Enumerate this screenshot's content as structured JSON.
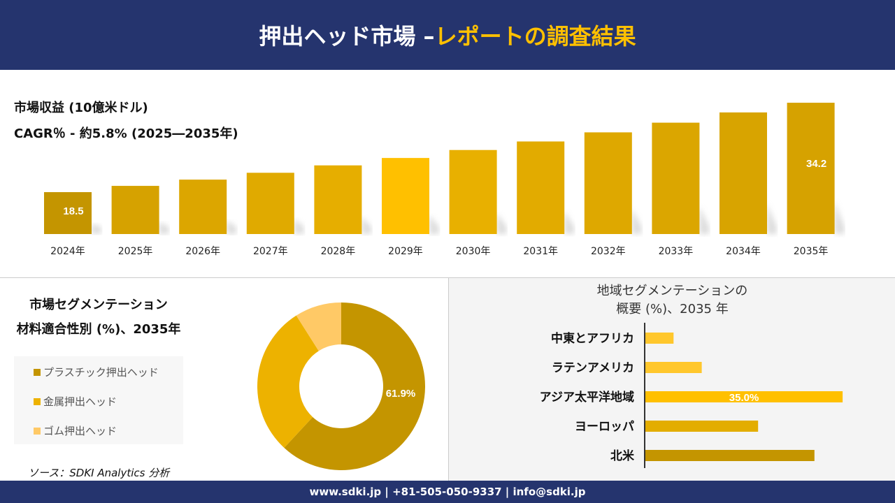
{
  "header": {
    "title_main": "押出ヘッド市場 –",
    "title_accent": "レポートの調査結果"
  },
  "colors": {
    "navy": "#25346e",
    "accent": "#ffc000",
    "plastic": "#c49500",
    "metal": "#edb200",
    "rubber": "#ffc966"
  },
  "chart_data": [
    {
      "type": "bar",
      "title": "市場収益 (10億米ドル)",
      "subtitle": "CAGR％ - 約5.8% (2025―2035年)",
      "categories": [
        "2024年",
        "2025年",
        "2026年",
        "2027年",
        "2028年",
        "2029年",
        "2030年",
        "2031年",
        "2032年",
        "2033年",
        "2034年",
        "2035年"
      ],
      "values": [
        18.5,
        19.6,
        20.7,
        21.9,
        23.2,
        24.5,
        25.9,
        27.4,
        29.0,
        30.7,
        32.5,
        34.2
      ],
      "data_labels": {
        "0": "18.5",
        "11": "34.2"
      }
    },
    {
      "type": "pie",
      "title": "市場セグメンテーション",
      "subtitle": "材料適合性別 (%)、2035年",
      "donut": true,
      "categories": [
        "プラスチック押出ヘッド",
        "金属押出ヘッド",
        "ゴム押出ヘッド"
      ],
      "values": [
        61.9,
        29.1,
        9.0
      ],
      "data_labels": {
        "0": "61.9%"
      },
      "legend": "left"
    },
    {
      "type": "bar",
      "orientation": "horizontal",
      "title": "地域セグメンテーションの",
      "subtitle": "概要 (%)、2035 年",
      "categories": [
        "中東とアフリカ",
        "ラテンアメリカ",
        "アジア太平洋地域",
        "ヨーロッパ",
        "北米"
      ],
      "values": [
        5.0,
        10.0,
        35.0,
        20.0,
        30.0
      ],
      "data_labels": {
        "2": "35.0%"
      }
    }
  ],
  "source": "ソース：SDKI Analytics 分析",
  "footer": "www.sdki.jp | +81-505-050-9337 | info@sdki.jp"
}
